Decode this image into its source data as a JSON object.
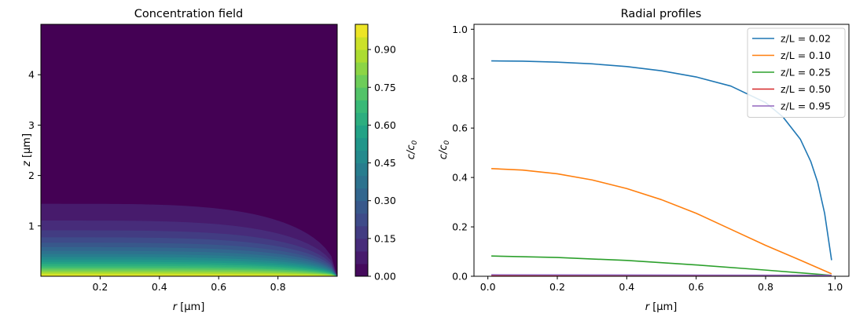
{
  "chart_data": [
    {
      "type": "heatmap",
      "title": "Concentration field",
      "xlabel_var": "r",
      "xlabel_unit": " [μm]",
      "ylabel_var": "z",
      "ylabel_unit": " [μm]",
      "xlim": [
        0.0,
        1.0
      ],
      "ylim": [
        0.0,
        5.0
      ],
      "xticks": [
        0.2,
        0.4,
        0.6,
        0.8
      ],
      "yticks": [
        1,
        2,
        3,
        4
      ],
      "xtick_labels": [
        "0.2",
        "0.4",
        "0.6",
        "0.8"
      ],
      "ytick_labels": [
        "1",
        "2",
        "3",
        "4"
      ],
      "colormap": "viridis",
      "colorbar": {
        "label_main": "c/c",
        "label_sub": "0",
        "range": [
          0.0,
          1.0
        ],
        "levels": 20,
        "ticks": [
          0.0,
          0.15,
          0.3,
          0.45,
          0.6,
          0.75,
          0.9
        ],
        "tick_labels": [
          "0.00",
          "0.15",
          "0.30",
          "0.45",
          "0.60",
          "0.75",
          "0.90"
        ]
      },
      "field": {
        "decay_length_z": 0.48,
        "boundary_r": 1.0
      }
    },
    {
      "type": "line",
      "title": "Radial profiles",
      "xlabel_var": "r",
      "xlabel_unit": " [μm]",
      "ylabel_main": "c/c",
      "ylabel_sub": "0",
      "xlim": [
        -0.04,
        1.04
      ],
      "ylim": [
        0.0,
        1.02
      ],
      "xticks": [
        0.0,
        0.2,
        0.4,
        0.6,
        0.8,
        1.0
      ],
      "yticks": [
        0.0,
        0.2,
        0.4,
        0.6,
        0.8,
        1.0
      ],
      "xtick_labels": [
        "0.0",
        "0.2",
        "0.4",
        "0.6",
        "0.8",
        "1.0"
      ],
      "ytick_labels": [
        "0.0",
        "0.2",
        "0.4",
        "0.6",
        "0.8",
        "1.0"
      ],
      "legend_position": "top-right",
      "series": [
        {
          "name": "z/L = 0.02",
          "color": "#1f77b4",
          "x": [
            0.01,
            0.1,
            0.2,
            0.3,
            0.4,
            0.5,
            0.6,
            0.7,
            0.8,
            0.85,
            0.9,
            0.93,
            0.95,
            0.97,
            0.99
          ],
          "y": [
            0.872,
            0.871,
            0.867,
            0.86,
            0.849,
            0.832,
            0.807,
            0.77,
            0.703,
            0.645,
            0.555,
            0.465,
            0.38,
            0.255,
            0.065
          ]
        },
        {
          "name": "z/L = 0.10",
          "color": "#ff7f0e",
          "x": [
            0.01,
            0.1,
            0.2,
            0.3,
            0.4,
            0.5,
            0.6,
            0.7,
            0.8,
            0.9,
            0.99
          ],
          "y": [
            0.436,
            0.43,
            0.415,
            0.39,
            0.355,
            0.31,
            0.255,
            0.19,
            0.125,
            0.065,
            0.01
          ]
        },
        {
          "name": "z/L = 0.25",
          "color": "#2ca02c",
          "x": [
            0.01,
            0.2,
            0.4,
            0.6,
            0.8,
            0.99
          ],
          "y": [
            0.082,
            0.076,
            0.064,
            0.046,
            0.025,
            0.004
          ]
        },
        {
          "name": "z/L = 0.50",
          "color": "#d62728",
          "x": [
            0.01,
            0.5,
            0.99
          ],
          "y": [
            0.003,
            0.002,
            0.0
          ]
        },
        {
          "name": "z/L = 0.95",
          "color": "#9467bd",
          "x": [
            0.01,
            0.5,
            0.99
          ],
          "y": [
            0.006,
            0.005,
            0.004
          ]
        }
      ]
    }
  ]
}
